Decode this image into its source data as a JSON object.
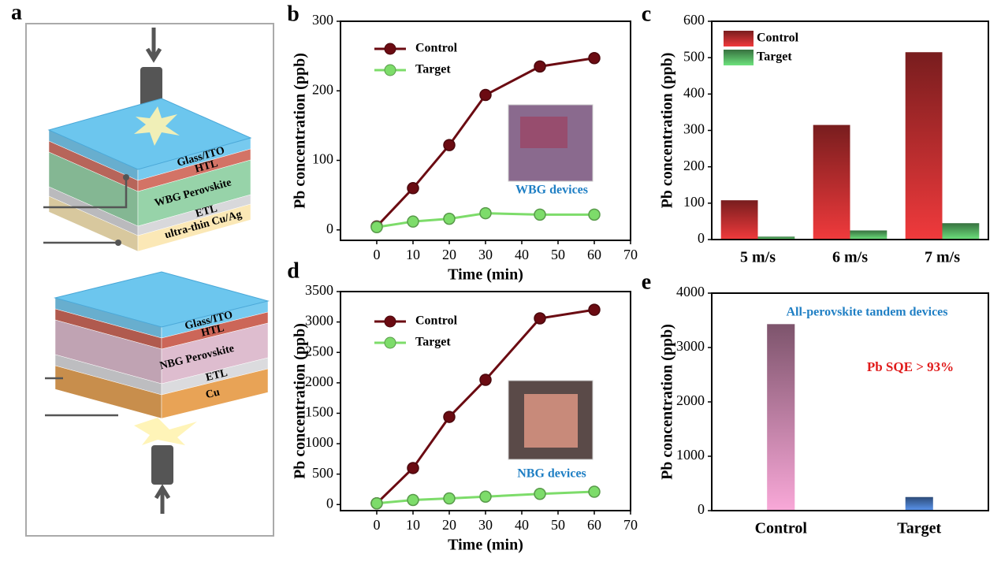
{
  "diagram": {
    "panel": "a",
    "top_stack": [
      "Glass/ITO",
      "HTL",
      "WBG Perovskite",
      "ETL",
      "ultra-thin Cu/Ag"
    ],
    "bottom_stack": [
      "Glass/ITO",
      "HTL",
      "NBG Perovskite",
      "ETL",
      "Cu"
    ]
  },
  "chart_data": [
    {
      "type": "line",
      "panel": "b",
      "xlabel": "Time (min)",
      "ylabel": "Pb concentration (ppb)",
      "xlim": [
        -10,
        70
      ],
      "xticks": [
        0,
        10,
        20,
        30,
        40,
        50,
        60,
        70
      ],
      "ylim": [
        -15,
        300
      ],
      "yticks": [
        0,
        100,
        200,
        300
      ],
      "legend": "upper left",
      "annotations": [
        {
          "text": "WBG devices",
          "color": "#1f7fc4"
        }
      ],
      "x": [
        0,
        10,
        20,
        30,
        45,
        60
      ],
      "series": [
        {
          "name": "Control",
          "color": "#6b0b12",
          "values": [
            5,
            60,
            122,
            194,
            235,
            247
          ]
        },
        {
          "name": "Target",
          "color": "#7ddc6a",
          "values": [
            4,
            12,
            16,
            24,
            22,
            22
          ]
        }
      ]
    },
    {
      "type": "bar",
      "panel": "c",
      "ylabel": "Pb concentration (ppb)",
      "ylim": [
        0,
        600
      ],
      "yticks": [
        0,
        100,
        200,
        300,
        400,
        500,
        600
      ],
      "legend": "upper left",
      "categories": [
        "5 m/s",
        "6 m/s",
        "7 m/s"
      ],
      "series": [
        {
          "name": "Control",
          "color": "#f03a3c",
          "values": [
            108,
            315,
            515
          ]
        },
        {
          "name": "Target",
          "color": "#6de27d",
          "values": [
            8,
            25,
            45
          ]
        }
      ]
    },
    {
      "type": "line",
      "panel": "d",
      "xlabel": "Time (min)",
      "ylabel": "Pb concentration (ppb)",
      "xlim": [
        -10,
        70
      ],
      "xticks": [
        0,
        10,
        20,
        30,
        40,
        50,
        60,
        70
      ],
      "ylim": [
        -100,
        3500
      ],
      "yticks": [
        0,
        500,
        1000,
        1500,
        2000,
        2500,
        3000,
        3500
      ],
      "legend": "upper left",
      "annotations": [
        {
          "text": "NBG devices",
          "color": "#1f7fc4"
        }
      ],
      "x": [
        0,
        10,
        20,
        30,
        45,
        60
      ],
      "series": [
        {
          "name": "Control",
          "color": "#6b0b12",
          "values": [
            20,
            600,
            1440,
            2050,
            3060,
            3200
          ]
        },
        {
          "name": "Target",
          "color": "#7ddc6a",
          "values": [
            20,
            75,
            100,
            130,
            175,
            210
          ]
        }
      ]
    },
    {
      "type": "bar",
      "panel": "e",
      "ylabel": "Pb concentration (ppb)",
      "ylim": [
        0,
        4000
      ],
      "yticks": [
        0,
        1000,
        2000,
        3000,
        4000
      ],
      "annotations": [
        {
          "text": "All-perovskite tandem devices",
          "color": "#1f7fc4"
        },
        {
          "text": "Pb SQE > 93%",
          "color": "#e01b1b"
        }
      ],
      "categories": [
        "Control",
        "Target"
      ],
      "series": [
        {
          "colors": [
            "#f9a8d8",
            "#5a95ef"
          ],
          "values": [
            3430,
            250
          ]
        }
      ]
    }
  ]
}
